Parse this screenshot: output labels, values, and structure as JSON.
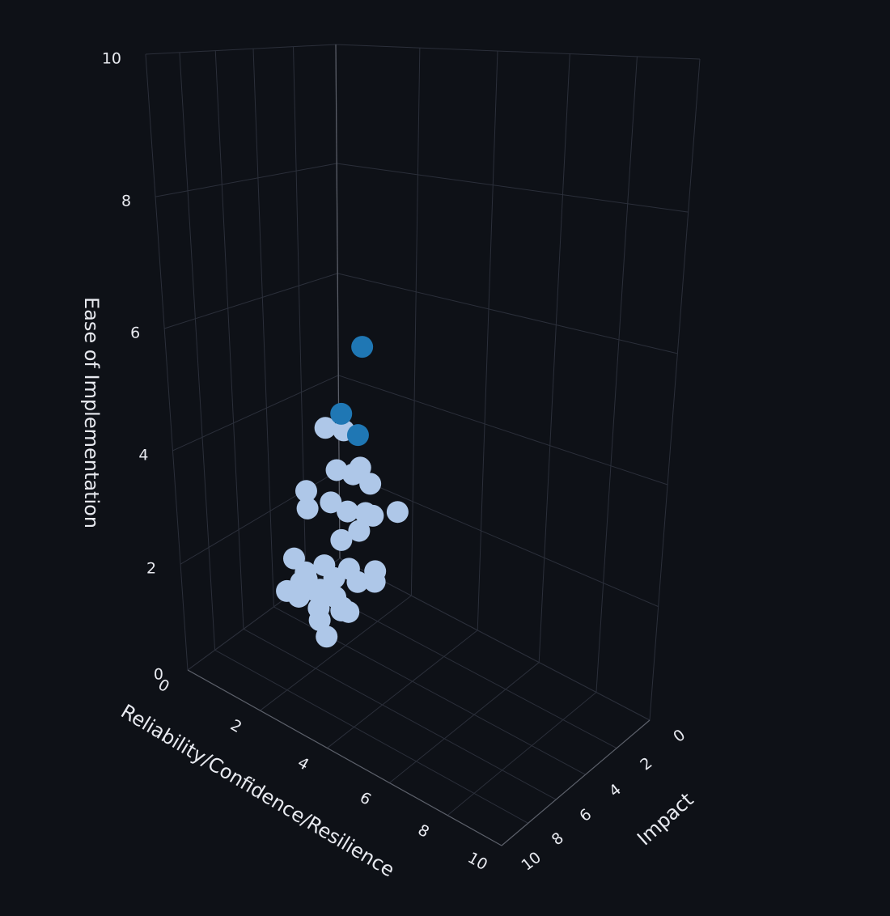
{
  "chart_data": {
    "type": "scatter3d",
    "x_label": "Reliability/Confidence/Resilience",
    "y_label": "Impact",
    "z_label": "Ease of Implementation",
    "xlim": [
      0,
      10
    ],
    "ylim": [
      0,
      10
    ],
    "zlim": [
      0,
      10
    ],
    "xticks": [
      0,
      2,
      4,
      6,
      8,
      10
    ],
    "yticks": [
      0,
      2,
      4,
      6,
      8,
      10
    ],
    "zticks": [
      0,
      2,
      4,
      6,
      8,
      10
    ],
    "grid": true,
    "series": [
      {
        "color": "#aec7e8",
        "x": [
          2.3,
          2.9,
          2.5,
          3.1,
          3.4,
          3.5,
          1.6,
          1.8,
          2.5,
          2.7,
          3.4,
          3.8,
          4.3,
          3.3,
          2.6,
          3.9,
          3.7,
          1.8,
          2.3,
          1.3,
          1.7,
          2.1,
          2.6,
          2.9,
          1.2,
          1.7,
          2.1,
          2.6,
          3.1,
          2.0,
          2.5,
          3.0,
          1.6,
          2.4,
          1.9,
          2.7,
          1.4
        ],
        "y": [
          5.7,
          5.9,
          5.5,
          5.8,
          6.0,
          5.6,
          5.4,
          5.8,
          5.9,
          5.3,
          5.7,
          6.1,
          5.6,
          5.9,
          5.5,
          6.2,
          5.8,
          5.2,
          5.9,
          5.6,
          5.8,
          5.5,
          6.0,
          5.7,
          5.9,
          5.4,
          5.8,
          6.1,
          5.6,
          5.7,
          5.3,
          6.0,
          5.9,
          5.5,
          6.2,
          5.8,
          5.6
        ],
        "z": [
          4.4,
          4.5,
          3.7,
          3.8,
          4.0,
          3.7,
          3.1,
          2.9,
          3.2,
          3.0,
          3.2,
          3.3,
          3.4,
          2.9,
          2.5,
          2.4,
          2.1,
          0.7,
          0.7,
          1.8,
          1.7,
          1.9,
          1.9,
          2.1,
          1.2,
          1.3,
          1.5,
          1.6,
          1.9,
          1.1,
          1.2,
          1.4,
          1.5,
          1.4,
          1.7,
          1.3,
          1.1
        ]
      },
      {
        "color": "#1f77b4",
        "x": [
          3.4,
          2.7,
          3.3
        ],
        "y": [
          5.8,
          5.6,
          5.9
        ],
        "z": [
          5.9,
          4.7,
          4.5
        ]
      }
    ]
  }
}
